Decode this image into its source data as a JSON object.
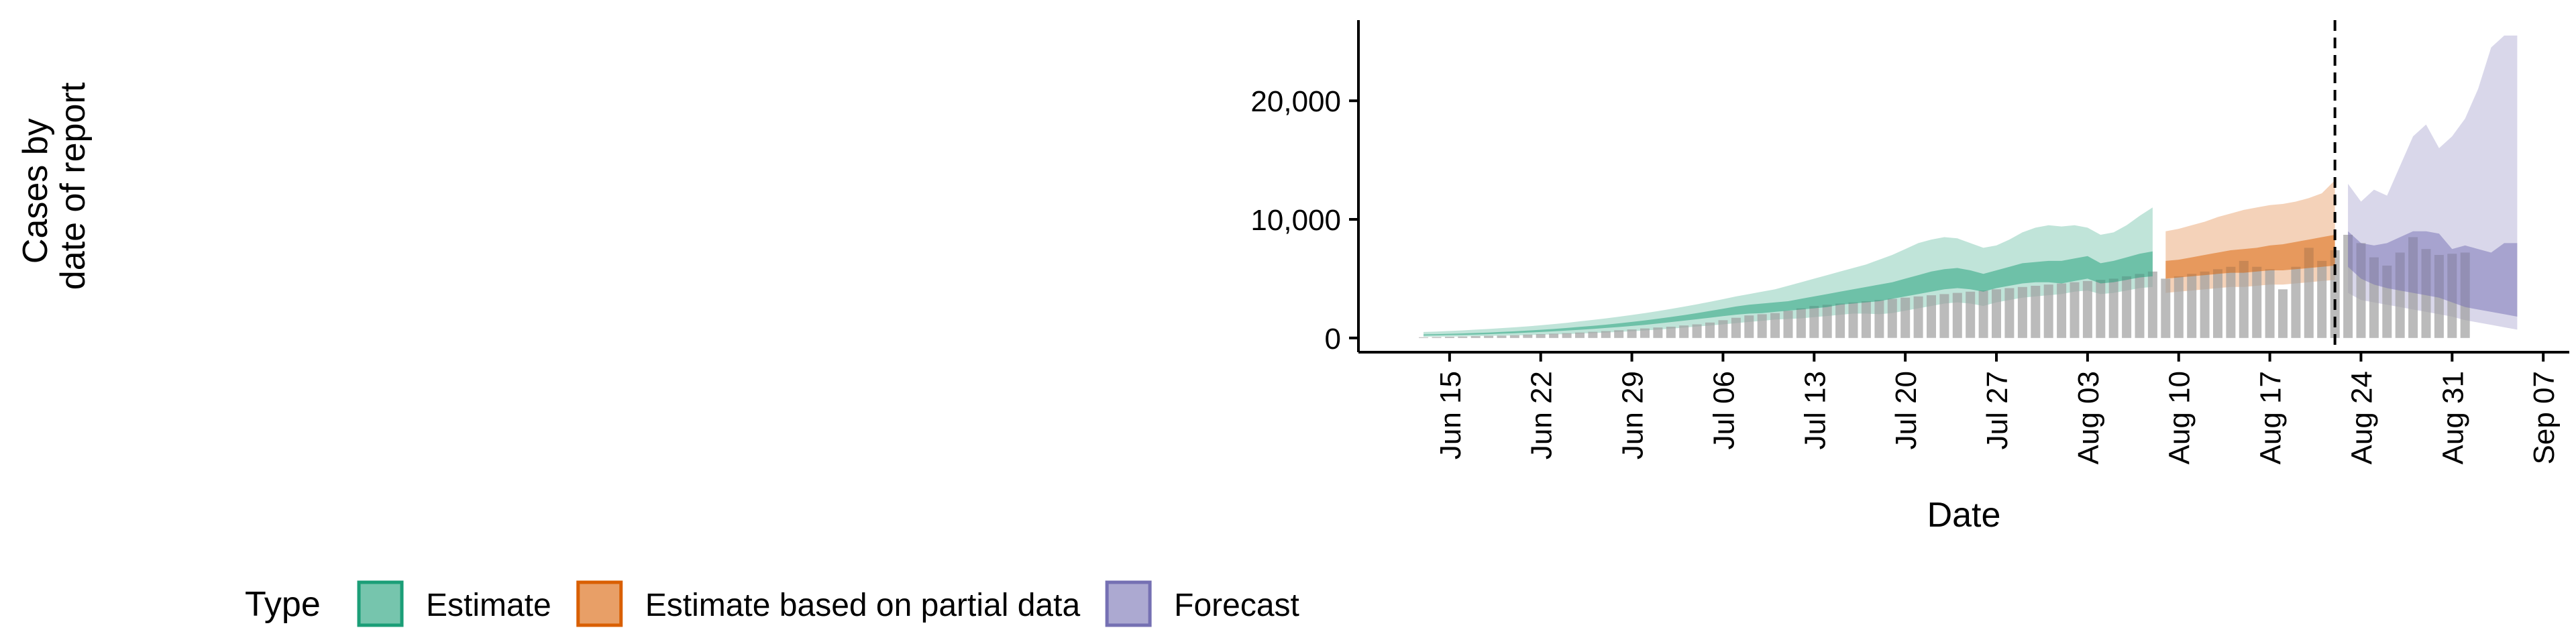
{
  "chart_data": {
    "type": "area",
    "xlabel": "Date",
    "ylabel_lines": [
      "Cases by",
      "date of report"
    ],
    "x_ticks": [
      "Jun 15",
      "Jun 22",
      "Jun 29",
      "Jul 06",
      "Jul 13",
      "Jul 20",
      "Jul 27",
      "Aug 03",
      "Aug 10",
      "Aug 17",
      "Aug 24",
      "Aug 31",
      "Sep 07"
    ],
    "x_tick_dates": [
      "2020-06-15",
      "2020-06-22",
      "2020-06-29",
      "2020-07-06",
      "2020-07-13",
      "2020-07-20",
      "2020-07-27",
      "2020-08-03",
      "2020-08-10",
      "2020-08-17",
      "2020-08-24",
      "2020-08-31",
      "2020-09-07"
    ],
    "x_range": [
      "2020-06-08",
      "2020-09-09"
    ],
    "y_ticks": [
      0,
      10000,
      20000
    ],
    "y_tick_labels": [
      "0",
      "10,000",
      "20,000"
    ],
    "ylim": [
      -1200,
      26800
    ],
    "grid": false,
    "vline_date": "2020-08-22",
    "vline_style": "dashed",
    "legend": {
      "title": "Type",
      "position": "bottom",
      "entries": [
        {
          "label": "Estimate",
          "color": "#1b9e77"
        },
        {
          "label": "Estimate based on partial data",
          "color": "#d95f02"
        },
        {
          "label": "Forecast",
          "color": "#7570b3"
        }
      ]
    },
    "bar_color": "#9e9e9e",
    "reported_cases": {
      "start_date": "2020-06-13",
      "values": [
        60,
        80,
        100,
        120,
        150,
        180,
        200,
        230,
        280,
        320,
        360,
        400,
        460,
        520,
        580,
        650,
        720,
        800,
        880,
        950,
        1050,
        1150,
        1300,
        1500,
        1700,
        1900,
        2000,
        2100,
        2300,
        2500,
        2700,
        2800,
        2900,
        3000,
        3100,
        3200,
        3300,
        3400,
        3500,
        3600,
        3700,
        3800,
        3900,
        4000,
        4100,
        4200,
        4300,
        4400,
        4500,
        4600,
        4700,
        4800,
        4900,
        5000,
        5200,
        5400,
        5600,
        5000,
        5200,
        5400,
        5600,
        5800,
        6000,
        6500,
        6000,
        5800,
        4100,
        6000,
        7600,
        6500,
        7400,
        8700,
        8000,
        6800,
        6100,
        7200,
        8500,
        7500,
        7000,
        7100,
        7200
      ]
    },
    "series": [
      {
        "name": "Estimate",
        "color": "#1b9e77",
        "start_date": "2020-06-13",
        "end_date": "2020-08-08",
        "outer_lower": [
          100,
          110,
          120,
          130,
          150,
          170,
          190,
          210,
          240,
          270,
          300,
          330,
          370,
          410,
          460,
          510,
          570,
          630,
          700,
          780,
          870,
          960,
          1050,
          1150,
          1250,
          1350,
          1450,
          1550,
          1600,
          1650,
          1750,
          1850,
          1950,
          2050,
          2050,
          2000,
          2100,
          2300,
          2500,
          2700,
          2900,
          3000,
          2900,
          2700,
          3000,
          3200,
          3400,
          3500,
          3600,
          3700,
          3900,
          4000,
          3700,
          3800,
          4000,
          4200,
          4300
        ],
        "inner_lower": [
          200,
          220,
          240,
          260,
          290,
          320,
          360,
          400,
          450,
          500,
          560,
          620,
          690,
          760,
          840,
          920,
          1010,
          1110,
          1220,
          1340,
          1460,
          1580,
          1710,
          1840,
          1960,
          2050,
          2100,
          2200,
          2300,
          2400,
          2500,
          2600,
          2800,
          2900,
          3000,
          3100,
          3300,
          3500,
          3700,
          3900,
          4100,
          4200,
          4100,
          3900,
          4200,
          4400,
          4600,
          4700,
          4700,
          4600,
          4800,
          5000,
          4600,
          4700,
          4900,
          5100,
          5200
        ],
        "inner_upper": [
          300,
          320,
          350,
          380,
          420,
          460,
          510,
          560,
          620,
          690,
          760,
          840,
          930,
          1020,
          1120,
          1230,
          1350,
          1480,
          1620,
          1770,
          1930,
          2100,
          2280,
          2460,
          2650,
          2800,
          2900,
          3000,
          3100,
          3300,
          3500,
          3700,
          3900,
          4100,
          4300,
          4500,
          4700,
          5000,
          5300,
          5600,
          5800,
          5900,
          5700,
          5400,
          5700,
          6000,
          6300,
          6400,
          6500,
          6500,
          6700,
          6900,
          6300,
          6500,
          6800,
          7100,
          7300
        ],
        "outer_upper": [
          500,
          540,
          590,
          640,
          700,
          760,
          830,
          900,
          980,
          1070,
          1170,
          1280,
          1400,
          1520,
          1650,
          1790,
          1940,
          2100,
          2270,
          2450,
          2640,
          2840,
          3050,
          3270,
          3500,
          3700,
          3900,
          4100,
          4400,
          4700,
          5000,
          5300,
          5600,
          5900,
          6200,
          6600,
          7000,
          7500,
          8000,
          8300,
          8500,
          8400,
          8000,
          7600,
          7800,
          8300,
          8900,
          9300,
          9500,
          9400,
          9500,
          9300,
          8700,
          8900,
          9500,
          10300,
          11000
        ]
      },
      {
        "name": "Estimate based on partial data",
        "color": "#d95f02",
        "start_date": "2020-08-09",
        "end_date": "2020-08-22",
        "outer_lower": [
          3800,
          3900,
          4000,
          4100,
          4200,
          4300,
          4300,
          4400,
          4500,
          4500,
          4600,
          4700,
          4800,
          4900
        ],
        "inner_lower": [
          5000,
          5100,
          5200,
          5300,
          5400,
          5500,
          5500,
          5600,
          5700,
          5700,
          5800,
          5900,
          6000,
          6100
        ],
        "inner_upper": [
          6500,
          6600,
          6800,
          7000,
          7200,
          7400,
          7500,
          7600,
          7800,
          7900,
          8100,
          8300,
          8500,
          8700
        ],
        "outer_upper": [
          9000,
          9200,
          9500,
          9800,
          10200,
          10500,
          10800,
          11000,
          11200,
          11300,
          11500,
          11800,
          12200,
          13300
        ]
      },
      {
        "name": "Forecast",
        "color": "#7570b3",
        "start_date": "2020-08-23",
        "end_date": "2020-09-05",
        "outer_lower": [
          3800,
          3200,
          3000,
          2800,
          2600,
          2400,
          2200,
          2000,
          1800,
          1500,
          1300,
          1100,
          900,
          700
        ],
        "inner_lower": [
          6000,
          5000,
          4500,
          4200,
          4000,
          3800,
          3600,
          3400,
          3000,
          2600,
          2400,
          2200,
          2000,
          1800
        ],
        "inner_upper": [
          9000,
          8000,
          7800,
          8000,
          8500,
          9000,
          9000,
          8800,
          7500,
          7800,
          7500,
          7200,
          8000,
          8000
        ],
        "outer_upper": [
          13000,
          11500,
          12500,
          12000,
          14500,
          17000,
          18000,
          16000,
          17000,
          18500,
          21000,
          24500,
          25500,
          25500
        ]
      }
    ]
  }
}
